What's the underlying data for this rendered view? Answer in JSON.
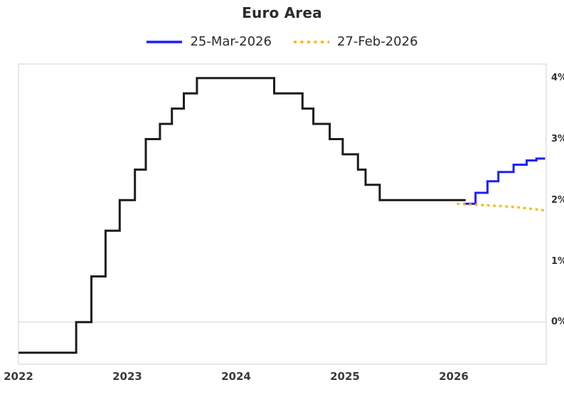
{
  "title": "Euro Area",
  "legend": {
    "items": [
      {
        "label": "25-Mar-2026",
        "color": "#1f1fff",
        "style": "solid"
      },
      {
        "label": "27-Feb-2026",
        "color": "#ffb300",
        "style": "dotted"
      }
    ]
  },
  "chart_data": {
    "type": "line",
    "title": "Euro Area",
    "xlabel": "",
    "ylabel": "",
    "xlim": [
      2022,
      2026.85
    ],
    "ylim": [
      -0.69,
      4.23
    ],
    "grid": "horizontal zero line only",
    "legend_position": "top-center",
    "x_axis": {
      "ticks": [
        {
          "label": "2022",
          "value": 2022
        },
        {
          "label": "2023",
          "value": 2023
        },
        {
          "label": "2024",
          "value": 2024
        },
        {
          "label": "2025",
          "value": 2025
        },
        {
          "label": "2026",
          "value": 2026
        }
      ]
    },
    "y_axis": {
      "side": "right",
      "ticks": [
        {
          "label": "4%",
          "value": 4
        },
        {
          "label": "3%",
          "value": 3
        },
        {
          "label": "2%",
          "value": 2
        },
        {
          "label": "1%",
          "value": 1
        },
        {
          "label": "0%",
          "value": 0
        }
      ]
    },
    "gridlines": {
      "y_values": [
        0
      ]
    },
    "series": [
      {
        "name": "policy-rate-history",
        "color": "#1c1c1c",
        "line_style": "step",
        "end_x": 2026.11,
        "points": [
          [
            2022.0,
            -0.5
          ],
          [
            2022.53,
            0.0
          ],
          [
            2022.67,
            0.75
          ],
          [
            2022.8,
            1.5
          ],
          [
            2022.93,
            2.0
          ],
          [
            2023.07,
            2.5
          ],
          [
            2023.17,
            3.0
          ],
          [
            2023.3,
            3.25
          ],
          [
            2023.41,
            3.5
          ],
          [
            2023.52,
            3.75
          ],
          [
            2023.64,
            4.0
          ],
          [
            2024.35,
            3.75
          ],
          [
            2024.61,
            3.5
          ],
          [
            2024.71,
            3.25
          ],
          [
            2024.86,
            3.0
          ],
          [
            2024.98,
            2.75
          ],
          [
            2025.12,
            2.5
          ],
          [
            2025.19,
            2.25
          ],
          [
            2025.32,
            2.0
          ]
        ]
      },
      {
        "name": "25-Mar-2026-forecast",
        "color": "#1f1fff",
        "line_style": "step",
        "end_x": 2026.84,
        "points": [
          [
            2026.09,
            1.94
          ],
          [
            2026.2,
            2.12
          ],
          [
            2026.31,
            2.31
          ],
          [
            2026.41,
            2.46
          ],
          [
            2026.55,
            2.58
          ],
          [
            2026.67,
            2.65
          ],
          [
            2026.76,
            2.68
          ]
        ]
      },
      {
        "name": "27-Feb-2026-forecast",
        "color": "#ffb300",
        "line_style": "dotted",
        "points": [
          [
            2026.03,
            1.94
          ],
          [
            2026.25,
            1.92
          ],
          [
            2026.45,
            1.9
          ],
          [
            2026.6,
            1.88
          ],
          [
            2026.75,
            1.85
          ],
          [
            2026.84,
            1.83
          ]
        ]
      }
    ]
  }
}
